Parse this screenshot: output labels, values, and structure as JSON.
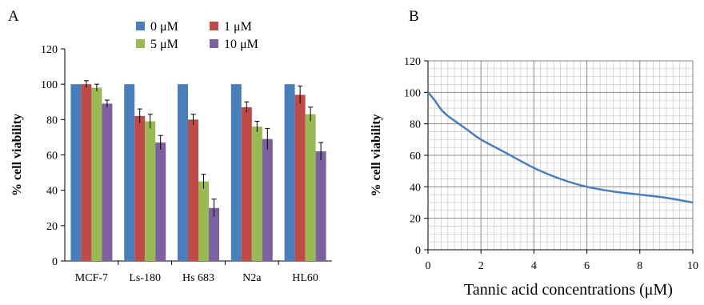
{
  "chart_data": [
    {
      "panel": "A",
      "type": "bar",
      "title": "",
      "xlabel": "",
      "ylabel": "% cell viability",
      "ylim": [
        0,
        120
      ],
      "yticks": [
        0,
        20,
        40,
        60,
        80,
        100,
        120
      ],
      "categories": [
        "MCF-7",
        "Ls-180",
        "Hs 683",
        "N2a",
        "HL60"
      ],
      "legend_position": "top",
      "series": [
        {
          "name": "0 μM",
          "color": "#4a7ebb",
          "values": [
            100,
            100,
            100,
            100,
            100
          ],
          "errors": [
            0,
            0,
            0,
            0,
            0
          ]
        },
        {
          "name": "1 μM",
          "color": "#be4b48",
          "values": [
            100,
            82,
            80,
            87,
            94
          ],
          "errors": [
            2,
            4,
            3,
            3,
            5
          ]
        },
        {
          "name": "5 μM",
          "color": "#98b954",
          "values": [
            98,
            79,
            45,
            76,
            83
          ],
          "errors": [
            2,
            4,
            4,
            3,
            4
          ]
        },
        {
          "name": "10 μM",
          "color": "#7d60a0",
          "values": [
            89,
            67,
            30,
            69,
            62
          ],
          "errors": [
            2,
            4,
            5,
            6,
            5
          ]
        }
      ],
      "grid": false
    },
    {
      "panel": "B",
      "type": "line",
      "title": "",
      "xlabel": "Tannic acid concentrations (μM)",
      "ylabel": "% cell viability",
      "xlim": [
        0,
        10
      ],
      "ylim": [
        0,
        120
      ],
      "xticks": [
        0,
        2,
        4,
        6,
        8,
        10
      ],
      "yticks": [
        0,
        20,
        40,
        60,
        80,
        100,
        120
      ],
      "grid": true,
      "series": [
        {
          "color": "#4a7ebb",
          "x": [
            0,
            0.25,
            0.5,
            0.75,
            1,
            1.5,
            2,
            3,
            4,
            5,
            6,
            7,
            8,
            9,
            10
          ],
          "y": [
            100,
            95,
            89,
            85,
            82,
            76,
            70,
            61,
            52,
            45,
            40,
            37,
            35,
            33,
            30
          ]
        }
      ]
    }
  ]
}
